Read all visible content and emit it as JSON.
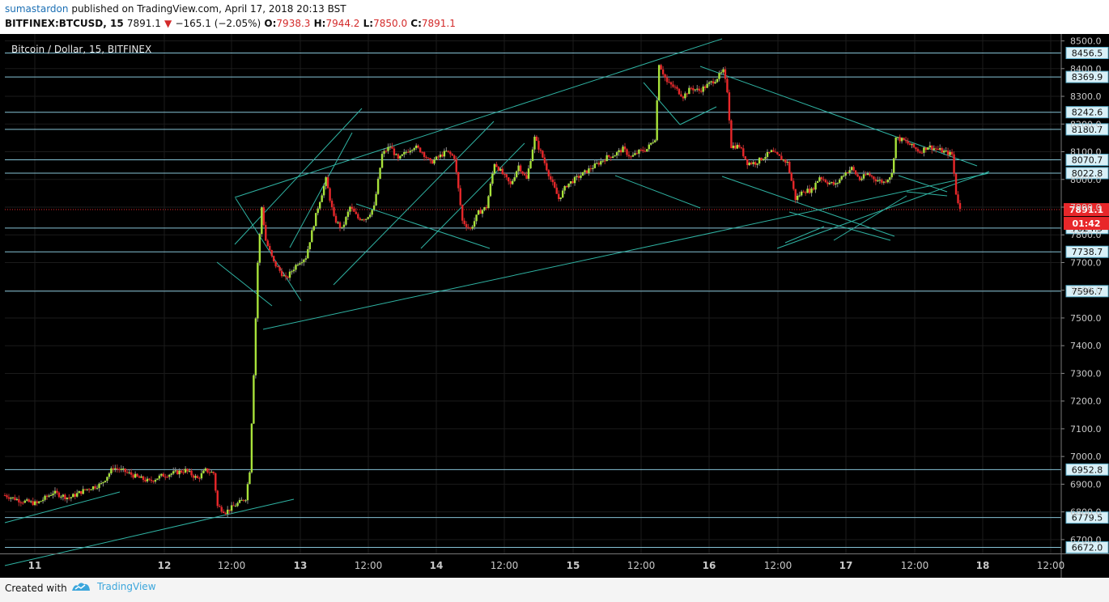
{
  "header": {
    "author": "sumastardon",
    "published": "published on TradingView.com, April 17, 2018 20:13 BST",
    "symbol": "BITFINEX:BTCUSD, 15",
    "last": "7891.1",
    "change_arrow": "▼",
    "change": "−165.1 (−2.05%)",
    "o_label": "O:",
    "o": "7938.3",
    "h_label": "H:",
    "h": "7944.2",
    "l_label": "L:",
    "l": "7850.0",
    "c_label": "C:",
    "c": "7891.1"
  },
  "footer": {
    "created": "Created with",
    "brand": "TradingView",
    "logo_icon": "tradingview-logo-icon"
  },
  "colors": {
    "up": "#a8e23a",
    "down": "#e8272a",
    "level": "#86c3d6",
    "grid": "#1b1b1b",
    "price_line": "#e8272a"
  },
  "chart_data": {
    "type": "candlestick",
    "title": "Bitcoin / Dollar, 15, BITFINEX",
    "ylim": [
      6650,
      8525
    ],
    "xlabel": "",
    "ylabel": "",
    "y_ticks": [
      "8500.0",
      "8400.0",
      "8300.0",
      "8200.0",
      "8100.0",
      "8000.0",
      "7900.0",
      "7800.0",
      "7700.0",
      "7600.0",
      "7500.0",
      "7400.0",
      "7300.0",
      "7200.0",
      "7100.0",
      "7000.0",
      "6900.0",
      "6800.0",
      "6700.0"
    ],
    "x_ticks": [
      "11",
      "12",
      "12:00",
      "13",
      "12:00",
      "14",
      "12:00",
      "15",
      "12:00",
      "16",
      "12:00",
      "17",
      "12:00",
      "18",
      "12:00"
    ],
    "levels": [
      {
        "label": "8456.5",
        "value": 8456.5
      },
      {
        "label": "8369.9",
        "value": 8369.9
      },
      {
        "label": "8242.6",
        "value": 8242.6
      },
      {
        "label": "8180.7",
        "value": 8180.7
      },
      {
        "label": "8070.7",
        "value": 8070.7
      },
      {
        "label": "8022.8",
        "value": 8022.8
      },
      {
        "label": "7824.5",
        "value": 7824.5
      },
      {
        "label": "7738.7",
        "value": 7738.7
      },
      {
        "label": "7596.7",
        "value": 7596.7
      },
      {
        "label": "6952.8",
        "value": 6952.8
      },
      {
        "label": "6779.5",
        "value": 6779.5
      },
      {
        "label": "6672.0",
        "value": 6672.0
      }
    ],
    "current_price": "7891.1",
    "countdown": "01:42",
    "price_path": [
      [
        0,
        6860
      ],
      [
        4,
        6840
      ],
      [
        8,
        6830
      ],
      [
        12,
        6870
      ],
      [
        16,
        6850
      ],
      [
        20,
        6880
      ],
      [
        24,
        6900
      ],
      [
        27,
        6960
      ],
      [
        30,
        6945
      ],
      [
        33,
        6925
      ],
      [
        36,
        6910
      ],
      [
        39,
        6930
      ],
      [
        42,
        6940
      ],
      [
        45,
        6950
      ],
      [
        48,
        6920
      ],
      [
        50,
        6950
      ],
      [
        52,
        6940
      ],
      [
        53,
        6820
      ],
      [
        55,
        6800
      ],
      [
        58,
        6830
      ],
      [
        60,
        6850
      ],
      [
        61,
        6950
      ],
      [
        62,
        7300
      ],
      [
        63,
        7700
      ],
      [
        64,
        7900
      ],
      [
        65,
        7780
      ],
      [
        67,
        7700
      ],
      [
        70,
        7640
      ],
      [
        73,
        7700
      ],
      [
        75,
        7720
      ],
      [
        78,
        7900
      ],
      [
        80,
        8000
      ],
      [
        82,
        7860
      ],
      [
        84,
        7820
      ],
      [
        86,
        7900
      ],
      [
        88,
        7860
      ],
      [
        90,
        7860
      ],
      [
        92,
        7900
      ],
      [
        94,
        8090
      ],
      [
        96,
        8120
      ],
      [
        98,
        8070
      ],
      [
        100,
        8100
      ],
      [
        102,
        8120
      ],
      [
        104,
        8100
      ],
      [
        106,
        8060
      ],
      [
        108,
        8080
      ],
      [
        110,
        8100
      ],
      [
        112,
        8080
      ],
      [
        114,
        7850
      ],
      [
        116,
        7820
      ],
      [
        118,
        7880
      ],
      [
        120,
        7900
      ],
      [
        122,
        8060
      ],
      [
        124,
        8020
      ],
      [
        126,
        7980
      ],
      [
        128,
        8050
      ],
      [
        130,
        8000
      ],
      [
        132,
        8150
      ],
      [
        134,
        8080
      ],
      [
        136,
        8000
      ],
      [
        138,
        7930
      ],
      [
        140,
        7980
      ],
      [
        142,
        8000
      ],
      [
        144,
        8020
      ],
      [
        146,
        8040
      ],
      [
        148,
        8060
      ],
      [
        150,
        8080
      ],
      [
        152,
        8090
      ],
      [
        154,
        8110
      ],
      [
        156,
        8080
      ],
      [
        158,
        8100
      ],
      [
        160,
        8110
      ],
      [
        162,
        8150
      ],
      [
        163,
        8420
      ],
      [
        165,
        8350
      ],
      [
        167,
        8330
      ],
      [
        169,
        8300
      ],
      [
        171,
        8330
      ],
      [
        173,
        8320
      ],
      [
        175,
        8340
      ],
      [
        177,
        8360
      ],
      [
        179,
        8390
      ],
      [
        180,
        8320
      ],
      [
        181,
        8120
      ],
      [
        183,
        8120
      ],
      [
        185,
        8060
      ],
      [
        187,
        8060
      ],
      [
        189,
        8080
      ],
      [
        191,
        8100
      ],
      [
        193,
        8080
      ],
      [
        195,
        8060
      ],
      [
        197,
        7930
      ],
      [
        199,
        7960
      ],
      [
        201,
        7960
      ],
      [
        203,
        8010
      ],
      [
        205,
        7990
      ],
      [
        207,
        7980
      ],
      [
        209,
        8020
      ],
      [
        211,
        8040
      ],
      [
        213,
        8000
      ],
      [
        215,
        8020
      ],
      [
        217,
        8000
      ],
      [
        219,
        7990
      ],
      [
        221,
        8020
      ],
      [
        222,
        8150
      ],
      [
        224,
        8140
      ],
      [
        226,
        8120
      ],
      [
        228,
        8100
      ],
      [
        230,
        8120
      ],
      [
        232,
        8110
      ],
      [
        234,
        8100
      ],
      [
        236,
        8090
      ],
      [
        237,
        7950
      ],
      [
        238,
        7891
      ]
    ]
  }
}
